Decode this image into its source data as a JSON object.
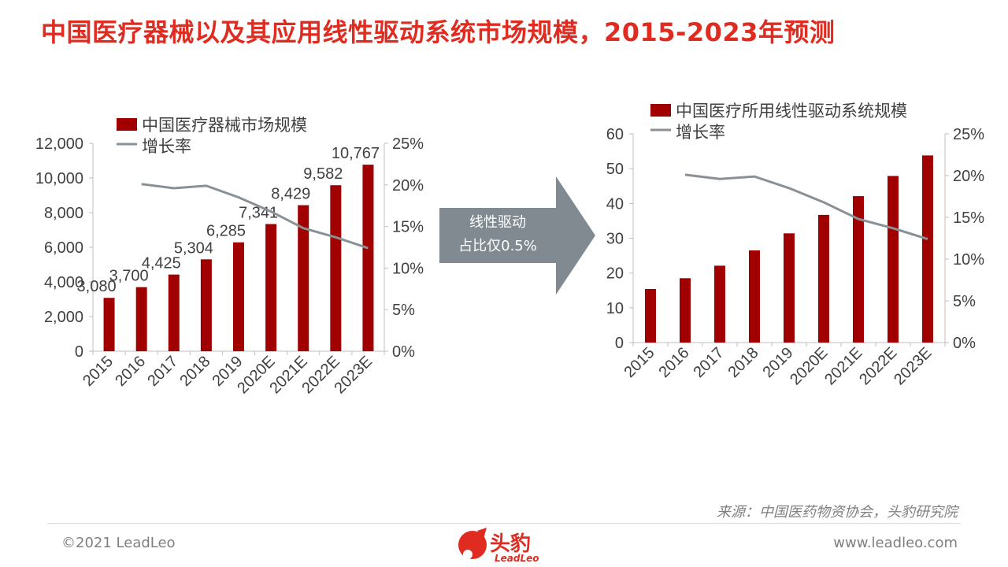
{
  "page": {
    "title": "中国医疗器械以及其应用线性驱动系统市场规模，2015-2023年预测",
    "source": "来源：中国医药物资协会，头豹研究院",
    "copyright": "©2021 LeadLeo",
    "website": "www.leadleo.com",
    "logo_text": "头豹",
    "logo_sub": "LeadLeo",
    "arrow_text_line1": "线性驱动",
    "arrow_text_line2": "占比仅0.5%"
  },
  "colors": {
    "title": "#e02b20",
    "bar": "#a00000",
    "line": "#8a9196",
    "arrow": "#808a90",
    "text": "#404040"
  },
  "chart_data": [
    {
      "type": "bar",
      "categories": [
        "2015",
        "2016",
        "2017",
        "2018",
        "2019",
        "2020E",
        "2021E",
        "2022E",
        "2023E"
      ],
      "series": [
        {
          "name": "中国医疗器械市场规模",
          "type": "bar",
          "axis": "left",
          "values": [
            3080,
            3700,
            4425,
            5304,
            6285,
            7341,
            8429,
            9582,
            10767
          ],
          "labels": [
            "3,080",
            "3,700",
            "4,425",
            "5,304",
            "6,285",
            "7,341",
            "8,429",
            "9,582",
            "10,767"
          ]
        },
        {
          "name": "增长率",
          "type": "line",
          "axis": "right",
          "values": [
            null,
            20.1,
            19.6,
            19.9,
            18.5,
            16.8,
            14.8,
            13.7,
            12.4
          ]
        }
      ],
      "ylim": [
        0,
        12000
      ],
      "yticks": [
        "0",
        "2,000",
        "4,000",
        "6,000",
        "8,000",
        "10,000",
        "12,000"
      ],
      "y2lim": [
        0,
        25
      ],
      "y2ticks": [
        "0%",
        "5%",
        "10%",
        "15%",
        "20%",
        "25%"
      ],
      "legend": "top",
      "grid": false
    },
    {
      "type": "bar",
      "categories": [
        "2015",
        "2016",
        "2017",
        "2018",
        "2019",
        "2020E",
        "2021E",
        "2022E",
        "2023E"
      ],
      "series": [
        {
          "name": "中国医疗所用线性驱动系统规模",
          "type": "bar",
          "axis": "left",
          "values": [
            15.4,
            18.5,
            22.1,
            26.5,
            31.4,
            36.7,
            42.1,
            47.9,
            53.8
          ]
        },
        {
          "name": "增长率",
          "type": "line",
          "axis": "right",
          "values": [
            null,
            20.1,
            19.6,
            19.9,
            18.5,
            16.8,
            14.8,
            13.7,
            12.4
          ]
        }
      ],
      "ylim": [
        0,
        60
      ],
      "yticks": [
        "0",
        "10",
        "20",
        "30",
        "40",
        "50",
        "60"
      ],
      "y2lim": [
        0,
        25
      ],
      "y2ticks": [
        "0%",
        "5%",
        "10%",
        "15%",
        "20%",
        "25%"
      ],
      "legend": "top",
      "grid": false
    }
  ]
}
